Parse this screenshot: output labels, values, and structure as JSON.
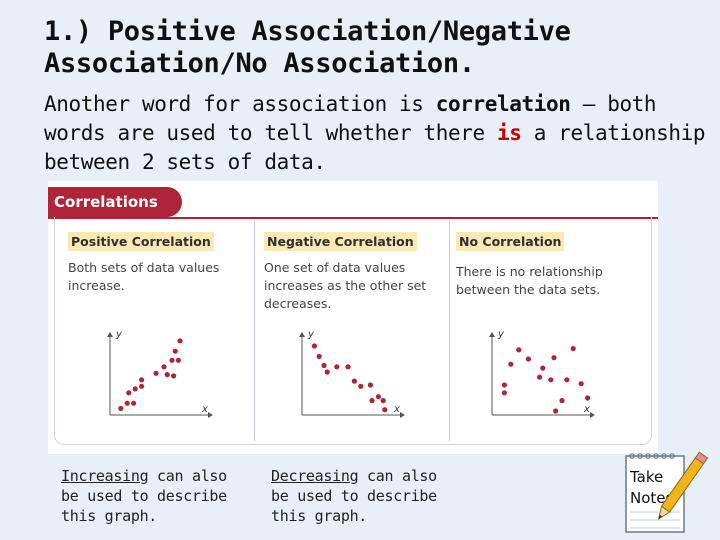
{
  "title": "1.) Positive Association/Negative Association/No Association.",
  "intro": {
    "part1": "Another word for association is ",
    "bold1": "correlation",
    "part2": " – both words are used to tell whether there ",
    "red_word": "is",
    "part3": " a relationship between 2 sets of data."
  },
  "figure": {
    "banner": "Correlations",
    "accent_color": "#b0243a",
    "panels": [
      {
        "heading": "Positive Correlation",
        "text": "Both sets of data values increase.",
        "x_label": "x",
        "y_label": "y",
        "points": [
          [
            0.3,
            0.2
          ],
          [
            0.7,
            0.6
          ],
          [
            1.1,
            0.6
          ],
          [
            0.8,
            1.4
          ],
          [
            1.2,
            1.7
          ],
          [
            1.6,
            1.9
          ],
          [
            1.6,
            2.4
          ],
          [
            2.5,
            2.9
          ],
          [
            3.0,
            3.4
          ],
          [
            3.2,
            2.8
          ],
          [
            3.6,
            2.7
          ],
          [
            3.5,
            3.9
          ],
          [
            3.9,
            3.9
          ],
          [
            3.7,
            4.6
          ],
          [
            4.0,
            5.4
          ]
        ]
      },
      {
        "heading": "Negative Correlation",
        "text": "One set of data values increases as the other set decreases.",
        "x_label": "x",
        "y_label": "y",
        "points": [
          [
            0.4,
            5.0
          ],
          [
            0.7,
            4.2
          ],
          [
            1.0,
            3.5
          ],
          [
            1.2,
            3.0
          ],
          [
            1.8,
            3.4
          ],
          [
            2.5,
            3.4
          ],
          [
            2.9,
            2.3
          ],
          [
            3.3,
            1.9
          ],
          [
            3.9,
            2.0
          ],
          [
            4.4,
            1.1
          ],
          [
            4.0,
            0.8
          ],
          [
            4.7,
            0.8
          ],
          [
            4.8,
            0.1
          ]
        ]
      },
      {
        "heading": "No Correlation",
        "text": "There is no relationship between the data sets.",
        "x_label": "x",
        "y_label": "y",
        "points": [
          [
            0.4,
            1.4
          ],
          [
            0.4,
            2.0
          ],
          [
            0.8,
            3.6
          ],
          [
            1.3,
            4.7
          ],
          [
            1.9,
            4.0
          ],
          [
            2.6,
            2.6
          ],
          [
            2.8,
            3.3
          ],
          [
            3.3,
            2.4
          ],
          [
            3.5,
            4.1
          ],
          [
            4.3,
            2.4
          ],
          [
            4.7,
            4.8
          ],
          [
            4.0,
            0.8
          ],
          [
            5.2,
            2.1
          ],
          [
            5.6,
            1.0
          ],
          [
            3.6,
            0.0
          ]
        ]
      }
    ]
  },
  "notes": [
    {
      "keyword": "Increasing",
      "rest": " can also be used to describe this graph."
    },
    {
      "keyword": "Decreasing",
      "rest": " can also be used to describe this graph."
    }
  ],
  "take_notes": {
    "line1": "Take",
    "line2": "Notes"
  }
}
